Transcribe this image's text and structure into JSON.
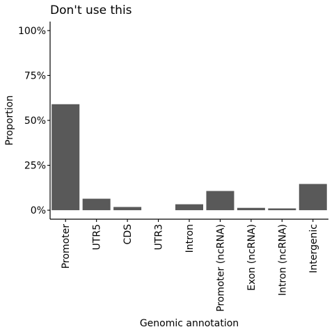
{
  "chart_data": {
    "type": "bar",
    "title": "Don't use this",
    "xlabel": "Genomic annotation",
    "ylabel": "Proportion",
    "categories": [
      "Promoter",
      "UTR5",
      "CDS",
      "UTR3",
      "Intron",
      "Promoter (ncRNA)",
      "Exon (ncRNA)",
      "Intron (ncRNA)",
      "Intergenic"
    ],
    "values": [
      0.59,
      0.064,
      0.018,
      0.0,
      0.033,
      0.107,
      0.013,
      0.01,
      0.146
    ],
    "ylim": [
      -0.05,
      1.05
    ],
    "yticks": [
      0,
      0.25,
      0.5,
      0.75,
      1.0
    ],
    "ytick_labels": [
      "0%",
      "25%",
      "50%",
      "75%",
      "100%"
    ],
    "grid": false,
    "bar_color": "#595959"
  }
}
